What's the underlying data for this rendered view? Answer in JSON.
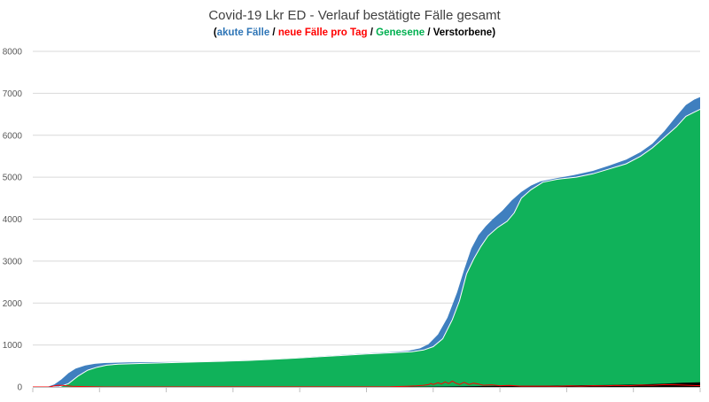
{
  "chart_data": {
    "type": "area",
    "title": "Covid-19 Lkr ED - Verlauf bestätigte Fälle gesamt",
    "subtitle_parts": [
      {
        "text": "(",
        "role": "plain"
      },
      {
        "text": "akute Fälle",
        "role": "acute"
      },
      {
        "text": " / ",
        "role": "plain"
      },
      {
        "text": "neue Fälle pro Tag",
        "role": "new"
      },
      {
        "text": " / ",
        "role": "plain"
      },
      {
        "text": "Genesene",
        "role": "recovered"
      },
      {
        "text": " / ",
        "role": "plain"
      },
      {
        "text": "Verstorbene",
        "role": "deaths"
      },
      {
        "text": ")",
        "role": "plain"
      }
    ],
    "ylim": [
      0,
      8000
    ],
    "yticks": [
      0,
      1000,
      2000,
      3000,
      4000,
      5000,
      6000,
      7000,
      8000
    ],
    "grid": true,
    "x_count": 400,
    "colors": {
      "acute": "#3F7FBF",
      "recovered": "#10B25A",
      "new": "#FF0000",
      "deaths": "#000000",
      "grid": "#D9D9D9"
    },
    "series": [
      {
        "role": "total",
        "points": [
          [
            0,
            0
          ],
          [
            12,
            0
          ],
          [
            18,
            60
          ],
          [
            24,
            180
          ],
          [
            30,
            330
          ],
          [
            36,
            440
          ],
          [
            44,
            510
          ],
          [
            52,
            550
          ],
          [
            60,
            570
          ],
          [
            80,
            585
          ],
          [
            100,
            590
          ],
          [
            130,
            600
          ],
          [
            160,
            620
          ],
          [
            180,
            640
          ],
          [
            200,
            665
          ],
          [
            220,
            695
          ],
          [
            240,
            730
          ],
          [
            260,
            765
          ],
          [
            280,
            800
          ],
          [
            300,
            830
          ],
          [
            315,
            860
          ],
          [
            325,
            920
          ],
          [
            332,
            1020
          ],
          [
            340,
            1250
          ],
          [
            348,
            1650
          ],
          [
            356,
            2250
          ],
          [
            362,
            2800
          ],
          [
            368,
            3300
          ],
          [
            374,
            3620
          ],
          [
            380,
            3830
          ],
          [
            386,
            4000
          ],
          [
            394,
            4200
          ],
          [
            402,
            4450
          ],
          [
            410,
            4650
          ],
          [
            418,
            4800
          ],
          [
            426,
            4900
          ],
          [
            440,
            4980
          ],
          [
            454,
            5050
          ],
          [
            470,
            5150
          ],
          [
            484,
            5280
          ],
          [
            498,
            5420
          ],
          [
            510,
            5600
          ],
          [
            520,
            5800
          ],
          [
            530,
            6100
          ],
          [
            540,
            6450
          ],
          [
            548,
            6720
          ],
          [
            555,
            6850
          ],
          [
            560,
            6910
          ]
        ]
      },
      {
        "role": "recovered",
        "points": [
          [
            0,
            0
          ],
          [
            22,
            0
          ],
          [
            30,
            80
          ],
          [
            38,
            260
          ],
          [
            46,
            400
          ],
          [
            54,
            470
          ],
          [
            62,
            520
          ],
          [
            72,
            545
          ],
          [
            90,
            560
          ],
          [
            110,
            575
          ],
          [
            130,
            590
          ],
          [
            160,
            612
          ],
          [
            180,
            632
          ],
          [
            200,
            657
          ],
          [
            220,
            687
          ],
          [
            240,
            720
          ],
          [
            260,
            752
          ],
          [
            280,
            785
          ],
          [
            300,
            812
          ],
          [
            318,
            840
          ],
          [
            328,
            880
          ],
          [
            336,
            960
          ],
          [
            344,
            1150
          ],
          [
            352,
            1600
          ],
          [
            358,
            2050
          ],
          [
            364,
            2700
          ],
          [
            370,
            3050
          ],
          [
            376,
            3350
          ],
          [
            382,
            3600
          ],
          [
            390,
            3800
          ],
          [
            398,
            3950
          ],
          [
            404,
            4150
          ],
          [
            410,
            4500
          ],
          [
            418,
            4700
          ],
          [
            428,
            4880
          ],
          [
            440,
            4950
          ],
          [
            456,
            5000
          ],
          [
            470,
            5080
          ],
          [
            484,
            5200
          ],
          [
            498,
            5320
          ],
          [
            510,
            5500
          ],
          [
            520,
            5700
          ],
          [
            530,
            5950
          ],
          [
            540,
            6200
          ],
          [
            548,
            6450
          ],
          [
            555,
            6550
          ],
          [
            560,
            6620
          ]
        ]
      },
      {
        "role": "deaths",
        "points": [
          [
            0,
            0
          ],
          [
            250,
            0
          ],
          [
            300,
            3
          ],
          [
            330,
            8
          ],
          [
            360,
            15
          ],
          [
            390,
            25
          ],
          [
            420,
            30
          ],
          [
            450,
            35
          ],
          [
            480,
            45
          ],
          [
            510,
            60
          ],
          [
            530,
            80
          ],
          [
            545,
            100
          ],
          [
            560,
            110
          ]
        ]
      },
      {
        "role": "new",
        "points": [
          [
            0,
            0
          ],
          [
            14,
            0
          ],
          [
            17,
            20
          ],
          [
            21,
            40
          ],
          [
            25,
            35
          ],
          [
            29,
            25
          ],
          [
            33,
            15
          ],
          [
            40,
            10
          ],
          [
            50,
            5
          ],
          [
            60,
            0
          ],
          [
            300,
            5
          ],
          [
            314,
            15
          ],
          [
            322,
            25
          ],
          [
            328,
            40
          ],
          [
            332,
            55
          ],
          [
            334,
            80
          ],
          [
            336,
            60
          ],
          [
            340,
            100
          ],
          [
            343,
            70
          ],
          [
            346,
            120
          ],
          [
            349,
            80
          ],
          [
            352,
            140
          ],
          [
            355,
            90
          ],
          [
            358,
            60
          ],
          [
            362,
            110
          ],
          [
            366,
            60
          ],
          [
            370,
            90
          ],
          [
            374,
            70
          ],
          [
            378,
            40
          ],
          [
            385,
            50
          ],
          [
            392,
            30
          ],
          [
            400,
            35
          ],
          [
            410,
            20
          ],
          [
            420,
            18
          ],
          [
            430,
            20
          ],
          [
            440,
            15
          ],
          [
            450,
            25
          ],
          [
            460,
            20
          ],
          [
            470,
            30
          ],
          [
            480,
            25
          ],
          [
            490,
            35
          ],
          [
            500,
            30
          ],
          [
            510,
            45
          ],
          [
            520,
            40
          ],
          [
            530,
            55
          ],
          [
            540,
            50
          ],
          [
            550,
            40
          ],
          [
            560,
            30
          ]
        ]
      }
    ]
  }
}
